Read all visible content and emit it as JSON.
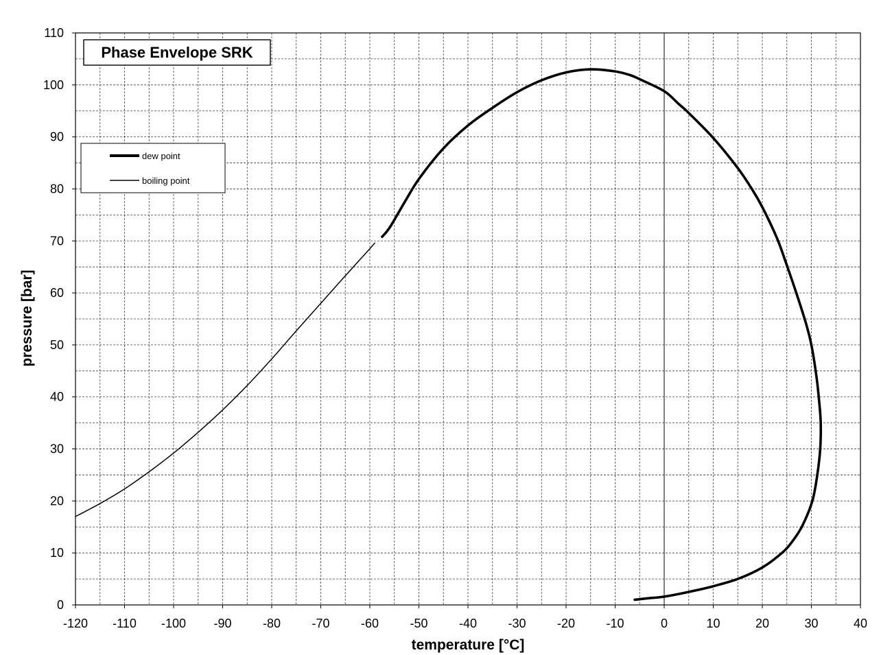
{
  "chart_data": {
    "type": "line",
    "title": "Phase Envelope SRK",
    "xlabel": "temperature [°C]",
    "ylabel": "pressure [bar]",
    "xlim": [
      -120,
      40
    ],
    "ylim": [
      0,
      110
    ],
    "x_ticks": [
      -120,
      -110,
      -100,
      -90,
      -80,
      -70,
      -60,
      -50,
      -40,
      -30,
      -20,
      -10,
      0,
      10,
      20,
      30,
      40
    ],
    "y_ticks": [
      0,
      10,
      20,
      30,
      40,
      50,
      60,
      70,
      80,
      90,
      100,
      110
    ],
    "grid": {
      "major": true,
      "minor": true,
      "minor_x_step": 5,
      "minor_y_step": 5
    },
    "legend": {
      "placement": "upper-left"
    },
    "series": [
      {
        "name": "dew point",
        "style": "thick",
        "color": "#000000",
        "points": [
          [
            -57.5,
            70.8
          ],
          [
            -56,
            72.5
          ],
          [
            -53,
            77.3
          ],
          [
            -50,
            81.9
          ],
          [
            -45,
            87.8
          ],
          [
            -40,
            92.2
          ],
          [
            -35,
            95.6
          ],
          [
            -30,
            98.6
          ],
          [
            -25,
            100.9
          ],
          [
            -20,
            102.4
          ],
          [
            -15,
            103.0
          ],
          [
            -10,
            102.6
          ],
          [
            -7,
            101.9
          ],
          [
            -5,
            101.1
          ],
          [
            0,
            98.8
          ],
          [
            3,
            96.3
          ],
          [
            5,
            94.6
          ],
          [
            10,
            89.8
          ],
          [
            15,
            84.0
          ],
          [
            18,
            79.8
          ],
          [
            20,
            76.5
          ],
          [
            23,
            70.5
          ],
          [
            25,
            65.3
          ],
          [
            27,
            59.8
          ],
          [
            29,
            53.8
          ],
          [
            30,
            50.0
          ],
          [
            31,
            44.2
          ],
          [
            31.5,
            40.0
          ],
          [
            31.9,
            35.2
          ],
          [
            31.8,
            30.0
          ],
          [
            31.2,
            25.0
          ],
          [
            30.2,
            20.0
          ],
          [
            28.2,
            15.3
          ],
          [
            26.2,
            12.3
          ],
          [
            24,
            10.0
          ],
          [
            20,
            7.2
          ],
          [
            15,
            5.0
          ],
          [
            10,
            3.6
          ],
          [
            5,
            2.5
          ],
          [
            0,
            1.6
          ],
          [
            -3,
            1.3
          ],
          [
            -6,
            1.0
          ]
        ]
      },
      {
        "name": "boiling point",
        "style": "thin",
        "color": "#000000",
        "points": [
          [
            -120,
            17.0
          ],
          [
            -115,
            19.5
          ],
          [
            -110,
            22.3
          ],
          [
            -105,
            25.6
          ],
          [
            -100,
            29.2
          ],
          [
            -95,
            33.2
          ],
          [
            -90,
            37.5
          ],
          [
            -85,
            42.2
          ],
          [
            -80,
            47.3
          ],
          [
            -75,
            52.7
          ],
          [
            -70,
            58.0
          ],
          [
            -65,
            63.3
          ],
          [
            -60,
            68.5
          ],
          [
            -59,
            69.6
          ]
        ]
      }
    ]
  }
}
